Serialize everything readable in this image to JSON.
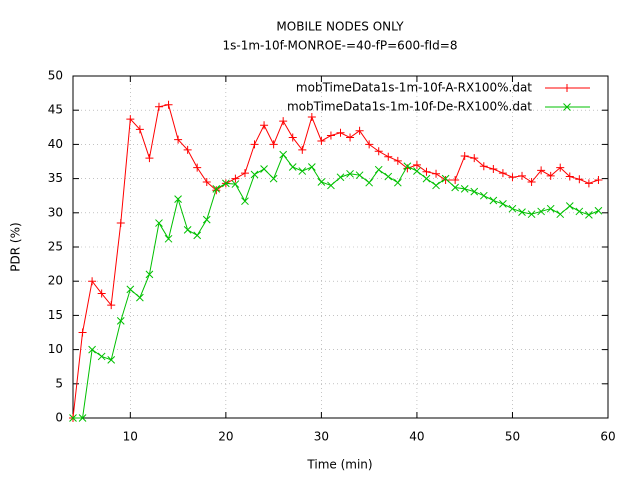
{
  "chart_data": {
    "type": "line",
    "title": "MOBILE NODES ONLY",
    "subtitle": "1s-1m-10f-MONROE-=40-fP=600-fId=8",
    "x_label": "Time (min)",
    "y_label": "PDR (%)",
    "x": [
      4,
      5,
      6,
      7,
      8,
      9,
      10,
      11,
      12,
      13,
      14,
      15,
      16,
      17,
      18,
      19,
      20,
      21,
      22,
      23,
      24,
      25,
      26,
      27,
      28,
      29,
      30,
      31,
      32,
      33,
      34,
      35,
      36,
      37,
      38,
      39,
      40,
      41,
      42,
      43,
      44,
      45,
      46,
      47,
      48,
      49,
      50,
      51,
      52,
      53,
      54,
      55,
      56,
      57,
      58,
      59
    ],
    "series": [
      {
        "name": "mobTimeData1s-1m-10f-A-RX100%.dat",
        "color": "#ff0000",
        "marker": "plus",
        "values": [
          0,
          12.5,
          20,
          18.2,
          16.5,
          28.5,
          43.7,
          42.2,
          38,
          45.5,
          45.8,
          40.7,
          39.2,
          36.6,
          34.5,
          33.3,
          34.3,
          35,
          35.8,
          40,
          42.8,
          40,
          43.4,
          41,
          39.2,
          44,
          40.5,
          41.3,
          41.7,
          41,
          42,
          40,
          39,
          38.2,
          37.6,
          36.5,
          37,
          36,
          35.7,
          34.8,
          34.8,
          38.3,
          38,
          36.8,
          36.4,
          35.8,
          35.2,
          35.4,
          34.5,
          36.2,
          35.4,
          36.6,
          35.3,
          34.9,
          34.3,
          34.8
        ]
      },
      {
        "name": "mobTimeData1s-1m-10f-De-RX100%.dat",
        "color": "#00c000",
        "marker": "cross",
        "values": [
          0,
          0,
          10,
          9,
          8.5,
          14.2,
          18.8,
          17.6,
          21,
          28.5,
          26.2,
          32,
          27.5,
          26.7,
          29,
          33.5,
          34.3,
          34.2,
          31.7,
          35.6,
          36.4,
          35,
          38.5,
          36.7,
          36.1,
          36.7,
          34.5,
          34,
          35.2,
          35.7,
          35.5,
          34.4,
          36.3,
          35.3,
          34.4,
          36.8,
          36.1,
          35,
          34,
          35,
          33.7,
          33.5,
          33.1,
          32.5,
          31.8,
          31.3,
          30.6,
          30.1,
          29.8,
          30.2,
          30.6,
          29.8,
          31,
          30.2,
          29.7,
          30.3
        ]
      }
    ],
    "xlim": [
      4,
      60
    ],
    "xticks": [
      10,
      20,
      30,
      40,
      50,
      60
    ],
    "ylim": [
      0,
      50
    ],
    "yticks": [
      0,
      5,
      10,
      15,
      20,
      25,
      30,
      35,
      40,
      45,
      50
    ],
    "grid": true,
    "legend": "upper right"
  }
}
